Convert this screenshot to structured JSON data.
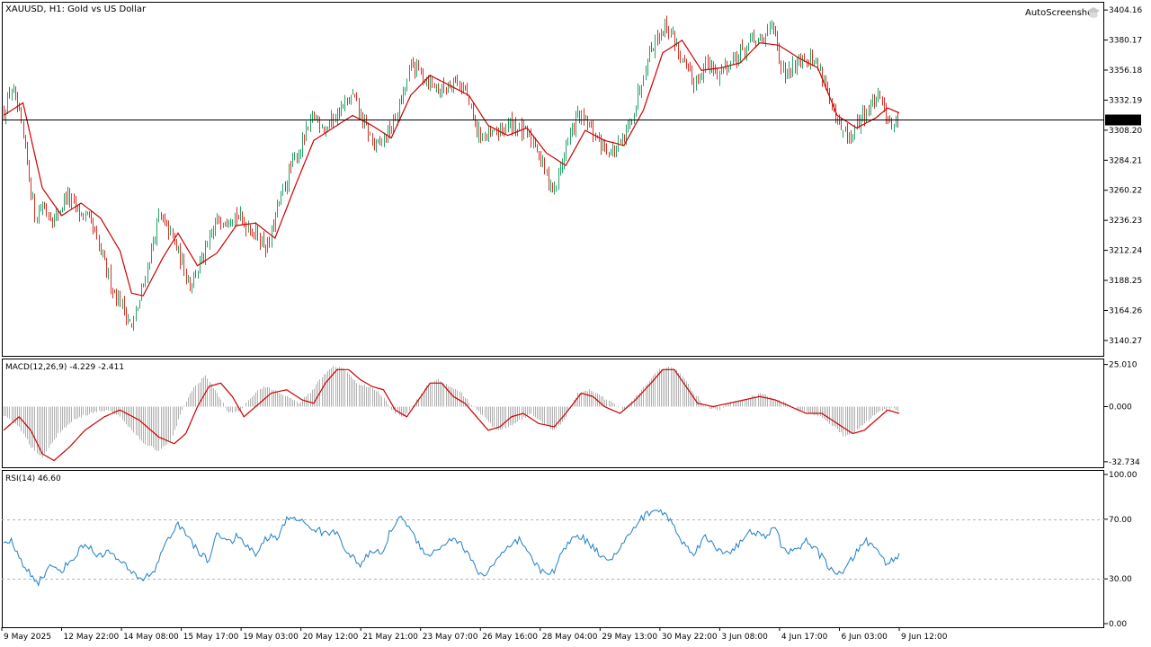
{
  "symbol_title": "XAUUSD, H1:  Gold vs US Dollar",
  "watermark": "AutoScreenshot",
  "current_price": "3316.70",
  "colors": {
    "bull": "#26a269",
    "bear": "#d93025",
    "ma": "#cc0000",
    "macd_hist": "#b0b0b0",
    "macd_signal": "#cc0000",
    "rsi": "#1f7fc8",
    "grid_dashed": "#b4b4b4",
    "axis": "#000000",
    "price_label_bg": "#000000",
    "price_label_fg": "#ffffff"
  },
  "macd_label": "MACD(12,26,9) -4.229 -2.411",
  "rsi_label": "RSI(14) 46.60",
  "chart_data": [
    {
      "type": "candlestick",
      "name": "price",
      "y_ticks": [
        "3404.16",
        "3380.17",
        "3356.18",
        "3332.19",
        "3308.20",
        "3284.21",
        "3260.22",
        "3236.23",
        "3212.24",
        "3188.25",
        "3164.26",
        "3140.27"
      ],
      "ylim": [
        3128,
        3410
      ],
      "current": 3316.7,
      "anchors": [
        [
          0,
          3322
        ],
        [
          4,
          3342
        ],
        [
          8,
          3318
        ],
        [
          12,
          3282
        ],
        [
          16,
          3240
        ],
        [
          20,
          3248
        ],
        [
          26,
          3236
        ],
        [
          32,
          3256
        ],
        [
          38,
          3244
        ],
        [
          44,
          3236
        ],
        [
          50,
          3210
        ],
        [
          56,
          3182
        ],
        [
          62,
          3166
        ],
        [
          66,
          3150
        ],
        [
          70,
          3172
        ],
        [
          74,
          3200
        ],
        [
          80,
          3238
        ],
        [
          86,
          3226
        ],
        [
          90,
          3210
        ],
        [
          96,
          3186
        ],
        [
          104,
          3210
        ],
        [
          110,
          3236
        ],
        [
          118,
          3242
        ],
        [
          126,
          3232
        ],
        [
          130,
          3226
        ],
        [
          136,
          3214
        ],
        [
          142,
          3250
        ],
        [
          148,
          3278
        ],
        [
          154,
          3298
        ],
        [
          160,
          3320
        ],
        [
          166,
          3310
        ],
        [
          172,
          3322
        ],
        [
          180,
          3335
        ],
        [
          186,
          3312
        ],
        [
          192,
          3294
        ],
        [
          200,
          3310
        ],
        [
          206,
          3336
        ],
        [
          210,
          3360
        ],
        [
          214,
          3356
        ],
        [
          220,
          3346
        ],
        [
          226,
          3340
        ],
        [
          232,
          3350
        ],
        [
          238,
          3340
        ],
        [
          244,
          3306
        ],
        [
          250,
          3302
        ],
        [
          256,
          3308
        ],
        [
          262,
          3314
        ],
        [
          268,
          3306
        ],
        [
          274,
          3298
        ],
        [
          280,
          3272
        ],
        [
          284,
          3260
        ],
        [
          290,
          3296
        ],
        [
          296,
          3320
        ],
        [
          302,
          3310
        ],
        [
          308,
          3298
        ],
        [
          314,
          3290
        ],
        [
          320,
          3300
        ],
        [
          326,
          3330
        ],
        [
          332,
          3368
        ],
        [
          338,
          3386
        ],
        [
          342,
          3392
        ],
        [
          346,
          3380
        ],
        [
          350,
          3362
        ],
        [
          356,
          3346
        ],
        [
          362,
          3360
        ],
        [
          368,
          3354
        ],
        [
          374,
          3362
        ],
        [
          380,
          3370
        ],
        [
          386,
          3380
        ],
        [
          392,
          3378
        ],
        [
          396,
          3400
        ],
        [
          400,
          3360
        ],
        [
          404,
          3350
        ],
        [
          410,
          3368
        ],
        [
          416,
          3365
        ],
        [
          420,
          3360
        ],
        [
          424,
          3346
        ],
        [
          428,
          3318
        ],
        [
          432,
          3308
        ],
        [
          436,
          3300
        ],
        [
          442,
          3318
        ],
        [
          446,
          3326
        ],
        [
          450,
          3334
        ],
        [
          454,
          3326
        ],
        [
          458,
          3314
        ],
        [
          462,
          3314
        ]
      ],
      "moving_average_anchors": [
        [
          0,
          3320
        ],
        [
          10,
          3330
        ],
        [
          20,
          3262
        ],
        [
          30,
          3240
        ],
        [
          40,
          3250
        ],
        [
          50,
          3238
        ],
        [
          60,
          3212
        ],
        [
          66,
          3178
        ],
        [
          72,
          3176
        ],
        [
          82,
          3206
        ],
        [
          90,
          3226
        ],
        [
          100,
          3200
        ],
        [
          110,
          3210
        ],
        [
          120,
          3232
        ],
        [
          130,
          3234
        ],
        [
          140,
          3222
        ],
        [
          150,
          3262
        ],
        [
          160,
          3300
        ],
        [
          170,
          3310
        ],
        [
          180,
          3320
        ],
        [
          190,
          3312
        ],
        [
          200,
          3302
        ],
        [
          210,
          3336
        ],
        [
          220,
          3352
        ],
        [
          230,
          3344
        ],
        [
          240,
          3336
        ],
        [
          250,
          3312
        ],
        [
          260,
          3304
        ],
        [
          270,
          3310
        ],
        [
          280,
          3290
        ],
        [
          290,
          3280
        ],
        [
          300,
          3308
        ],
        [
          310,
          3300
        ],
        [
          320,
          3296
        ],
        [
          330,
          3324
        ],
        [
          340,
          3370
        ],
        [
          350,
          3380
        ],
        [
          360,
          3356
        ],
        [
          370,
          3358
        ],
        [
          380,
          3362
        ],
        [
          390,
          3378
        ],
        [
          400,
          3376
        ],
        [
          410,
          3366
        ],
        [
          420,
          3358
        ],
        [
          430,
          3320
        ],
        [
          440,
          3310
        ],
        [
          450,
          3318
        ],
        [
          456,
          3326
        ],
        [
          462,
          3322
        ]
      ],
      "bars": 462
    },
    {
      "type": "macd",
      "name": "MACD(12,26,9)",
      "y_ticks": [
        "25.010",
        "0.000",
        "-32.734"
      ],
      "ylim": [
        -36,
        28
      ],
      "hist_anchors": [
        [
          0,
          -5
        ],
        [
          8,
          -12
        ],
        [
          14,
          -24
        ],
        [
          20,
          -30
        ],
        [
          28,
          -16
        ],
        [
          36,
          -8
        ],
        [
          44,
          -4
        ],
        [
          52,
          -2
        ],
        [
          60,
          -6
        ],
        [
          66,
          -14
        ],
        [
          72,
          -22
        ],
        [
          80,
          -26
        ],
        [
          86,
          -20
        ],
        [
          92,
          -2
        ],
        [
          98,
          12
        ],
        [
          104,
          18
        ],
        [
          110,
          8
        ],
        [
          116,
          -4
        ],
        [
          122,
          -2
        ],
        [
          128,
          6
        ],
        [
          134,
          12
        ],
        [
          140,
          10
        ],
        [
          146,
          6
        ],
        [
          152,
          2
        ],
        [
          158,
          8
        ],
        [
          164,
          18
        ],
        [
          170,
          24
        ],
        [
          176,
          22
        ],
        [
          182,
          14
        ],
        [
          188,
          12
        ],
        [
          194,
          8
        ],
        [
          200,
          -2
        ],
        [
          206,
          -6
        ],
        [
          212,
          2
        ],
        [
          218,
          12
        ],
        [
          224,
          16
        ],
        [
          230,
          12
        ],
        [
          236,
          8
        ],
        [
          242,
          0
        ],
        [
          248,
          -6
        ],
        [
          254,
          -14
        ],
        [
          260,
          -12
        ],
        [
          266,
          -8
        ],
        [
          272,
          -4
        ],
        [
          278,
          -10
        ],
        [
          284,
          -14
        ],
        [
          290,
          -6
        ],
        [
          296,
          8
        ],
        [
          302,
          10
        ],
        [
          308,
          6
        ],
        [
          314,
          2
        ],
        [
          320,
          -2
        ],
        [
          326,
          6
        ],
        [
          332,
          14
        ],
        [
          338,
          22
        ],
        [
          344,
          24
        ],
        [
          350,
          18
        ],
        [
          356,
          8
        ],
        [
          362,
          0
        ],
        [
          368,
          -2
        ],
        [
          374,
          2
        ],
        [
          380,
          4
        ],
        [
          386,
          6
        ],
        [
          392,
          8
        ],
        [
          398,
          4
        ],
        [
          404,
          2
        ],
        [
          410,
          -2
        ],
        [
          416,
          -4
        ],
        [
          422,
          -6
        ],
        [
          428,
          -12
        ],
        [
          434,
          -18
        ],
        [
          440,
          -14
        ],
        [
          446,
          -8
        ],
        [
          452,
          -2
        ],
        [
          458,
          -1
        ],
        [
          462,
          -4
        ]
      ],
      "signal_anchors": [
        [
          0,
          -14
        ],
        [
          8,
          -6
        ],
        [
          14,
          -14
        ],
        [
          20,
          -28
        ],
        [
          26,
          -32
        ],
        [
          34,
          -24
        ],
        [
          42,
          -14
        ],
        [
          52,
          -6
        ],
        [
          60,
          -2
        ],
        [
          70,
          -8
        ],
        [
          80,
          -18
        ],
        [
          88,
          -22
        ],
        [
          94,
          -16
        ],
        [
          100,
          0
        ],
        [
          106,
          12
        ],
        [
          112,
          14
        ],
        [
          118,
          6
        ],
        [
          124,
          -6
        ],
        [
          130,
          0
        ],
        [
          138,
          8
        ],
        [
          146,
          10
        ],
        [
          154,
          4
        ],
        [
          160,
          2
        ],
        [
          166,
          14
        ],
        [
          172,
          22
        ],
        [
          178,
          22
        ],
        [
          184,
          16
        ],
        [
          190,
          12
        ],
        [
          196,
          10
        ],
        [
          202,
          -2
        ],
        [
          208,
          -6
        ],
        [
          214,
          4
        ],
        [
          220,
          14
        ],
        [
          226,
          14
        ],
        [
          232,
          6
        ],
        [
          238,
          2
        ],
        [
          244,
          -6
        ],
        [
          250,
          -14
        ],
        [
          256,
          -12
        ],
        [
          262,
          -6
        ],
        [
          268,
          -4
        ],
        [
          276,
          -10
        ],
        [
          284,
          -12
        ],
        [
          290,
          -4
        ],
        [
          298,
          8
        ],
        [
          304,
          6
        ],
        [
          310,
          0
        ],
        [
          318,
          -4
        ],
        [
          326,
          4
        ],
        [
          334,
          14
        ],
        [
          340,
          22
        ],
        [
          346,
          22
        ],
        [
          352,
          12
        ],
        [
          358,
          2
        ],
        [
          366,
          0
        ],
        [
          374,
          2
        ],
        [
          382,
          4
        ],
        [
          390,
          6
        ],
        [
          398,
          4
        ],
        [
          406,
          0
        ],
        [
          414,
          -4
        ],
        [
          422,
          -4
        ],
        [
          430,
          -10
        ],
        [
          438,
          -16
        ],
        [
          444,
          -14
        ],
        [
          450,
          -8
        ],
        [
          456,
          -2
        ],
        [
          462,
          -4
        ]
      ]
    },
    {
      "type": "line",
      "name": "RSI(14)",
      "y_ticks": [
        "100.00",
        "70.00",
        "30.00",
        "0.00"
      ],
      "levels": [
        70,
        30
      ],
      "ylim": [
        0,
        100
      ],
      "anchors": [
        [
          0,
          52
        ],
        [
          4,
          56
        ],
        [
          8,
          44
        ],
        [
          12,
          36
        ],
        [
          18,
          28
        ],
        [
          24,
          38
        ],
        [
          30,
          36
        ],
        [
          36,
          44
        ],
        [
          42,
          54
        ],
        [
          48,
          46
        ],
        [
          54,
          48
        ],
        [
          60,
          42
        ],
        [
          66,
          34
        ],
        [
          72,
          30
        ],
        [
          78,
          36
        ],
        [
          84,
          56
        ],
        [
          90,
          66
        ],
        [
          96,
          58
        ],
        [
          100,
          48
        ],
        [
          106,
          42
        ],
        [
          110,
          62
        ],
        [
          116,
          54
        ],
        [
          120,
          58
        ],
        [
          126,
          52
        ],
        [
          130,
          46
        ],
        [
          136,
          58
        ],
        [
          142,
          58
        ],
        [
          146,
          70
        ],
        [
          150,
          72
        ],
        [
          156,
          66
        ],
        [
          160,
          64
        ],
        [
          166,
          60
        ],
        [
          172,
          62
        ],
        [
          178,
          46
        ],
        [
          184,
          40
        ],
        [
          190,
          48
        ],
        [
          196,
          48
        ],
        [
          200,
          64
        ],
        [
          206,
          72
        ],
        [
          210,
          62
        ],
        [
          216,
          50
        ],
        [
          220,
          46
        ],
        [
          226,
          52
        ],
        [
          232,
          58
        ],
        [
          238,
          50
        ],
        [
          244,
          36
        ],
        [
          248,
          32
        ],
        [
          254,
          42
        ],
        [
          260,
          50
        ],
        [
          266,
          56
        ],
        [
          272,
          44
        ],
        [
          278,
          34
        ],
        [
          284,
          36
        ],
        [
          290,
          52
        ],
        [
          296,
          60
        ],
        [
          302,
          54
        ],
        [
          308,
          46
        ],
        [
          314,
          44
        ],
        [
          320,
          54
        ],
        [
          326,
          66
        ],
        [
          332,
          74
        ],
        [
          338,
          76
        ],
        [
          344,
          70
        ],
        [
          350,
          54
        ],
        [
          356,
          48
        ],
        [
          362,
          58
        ],
        [
          368,
          50
        ],
        [
          374,
          48
        ],
        [
          380,
          54
        ],
        [
          386,
          62
        ],
        [
          392,
          58
        ],
        [
          398,
          64
        ],
        [
          402,
          50
        ],
        [
          408,
          48
        ],
        [
          414,
          56
        ],
        [
          420,
          48
        ],
        [
          426,
          38
        ],
        [
          432,
          32
        ],
        [
          438,
          44
        ],
        [
          444,
          56
        ],
        [
          450,
          50
        ],
        [
          456,
          40
        ],
        [
          462,
          46
        ]
      ]
    }
  ],
  "x_ticks": [
    "9 May 2025",
    "12 May 22:00",
    "14 May 08:00",
    "15 May 17:00",
    "19 May 03:00",
    "20 May 12:00",
    "21 May 21:00",
    "23 May 07:00",
    "26 May 16:00",
    "28 May 04:00",
    "29 May 13:00",
    "30 May 22:00",
    "3 Jun 08:00",
    "4 Jun 17:00",
    "6 Jun 03:00",
    "9 Jun 12:00"
  ]
}
